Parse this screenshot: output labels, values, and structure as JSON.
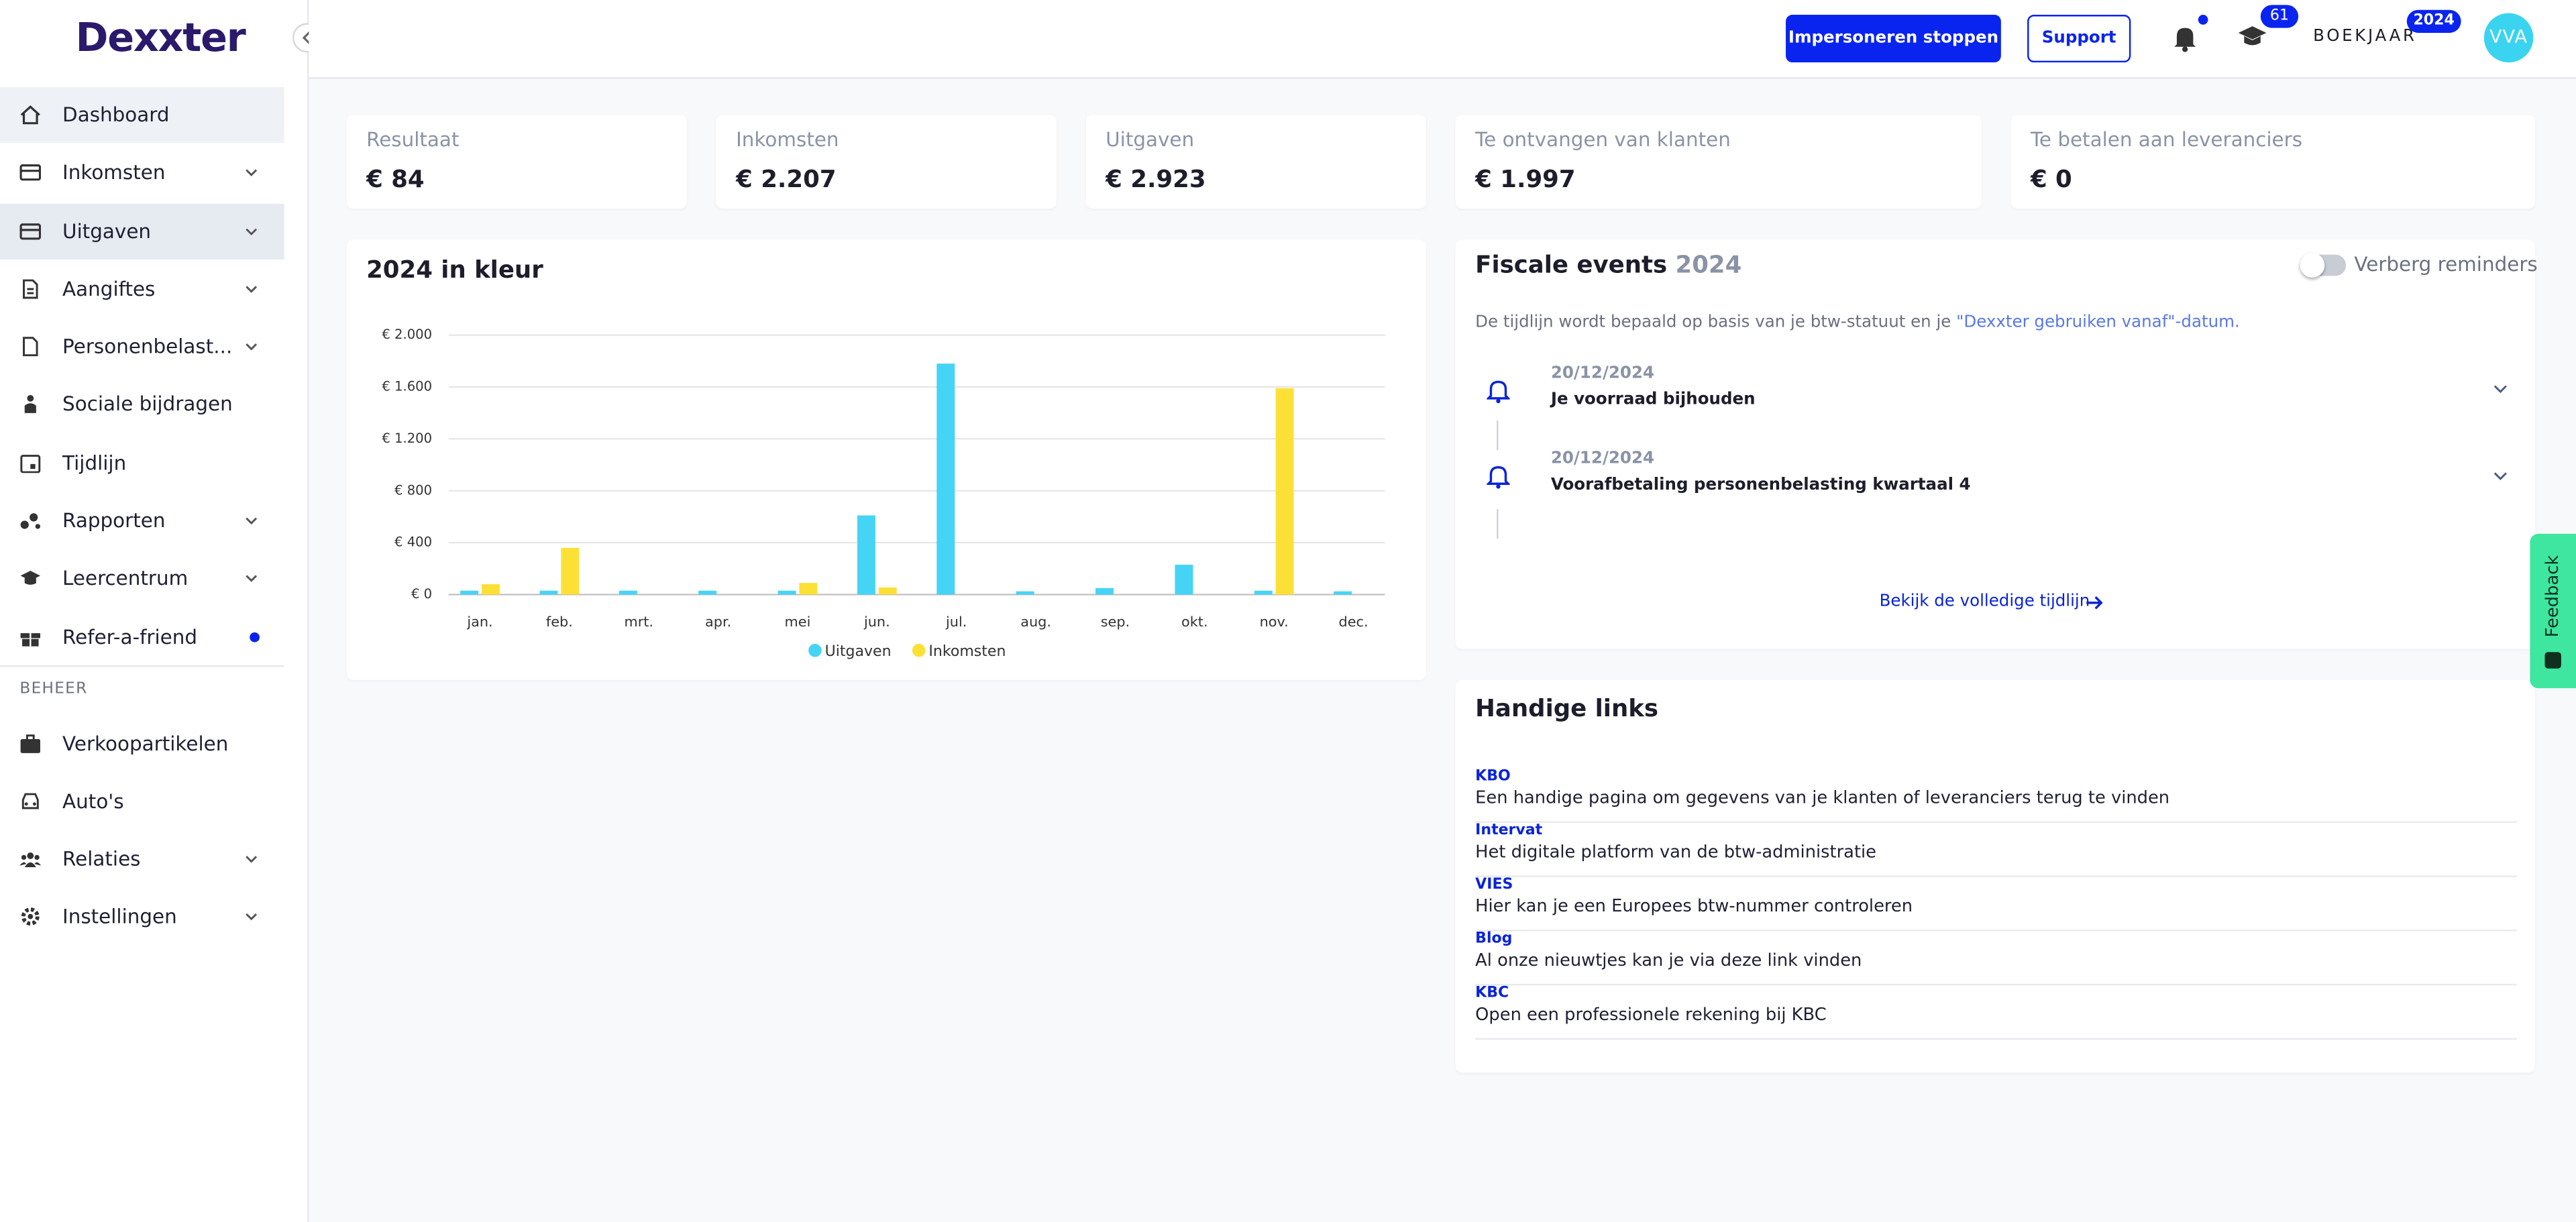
{
  "header": {
    "logo": "Dexxter",
    "stop_button": "Impersoneren stoppen",
    "support_button": "Support",
    "courses_badge": "61",
    "fiscal_year_label": "BOEKJAAR",
    "fiscal_year_badge": "2024",
    "avatar": "VVA"
  },
  "sidebar": {
    "items": [
      "Dashboard",
      "Inkomsten",
      "Uitgaven",
      "Aangiftes",
      "Personenbelast...",
      "Sociale bijdragen",
      "Tijdlijn",
      "Rapporten",
      "Leercentrum",
      "Refer-a-friend"
    ],
    "section": "BEHEER",
    "manage_items": [
      "Verkoopartikelen",
      "Auto's",
      "Relaties",
      "Instellingen"
    ]
  },
  "kpis": [
    {
      "label": "Resultaat",
      "value": "€ 84"
    },
    {
      "label": "Inkomsten",
      "value": "€ 2.207"
    },
    {
      "label": "Uitgaven",
      "value": "€ 2.923"
    },
    {
      "label": "Te ontvangen van klanten",
      "value": "€ 1.997"
    },
    {
      "label": "Te betalen aan leveranciers",
      "value": "€ 0"
    }
  ],
  "chart_data": {
    "type": "bar",
    "title": "2024 in kleur",
    "categories": [
      "jan.",
      "feb.",
      "mrt.",
      "apr.",
      "mei",
      "jun.",
      "jul.",
      "aug.",
      "sep.",
      "okt.",
      "nov.",
      "dec."
    ],
    "series": [
      {
        "name": "Uitgaven",
        "color": "#45d4f5",
        "values": [
          30,
          30,
          30,
          30,
          30,
          610,
          1780,
          25,
          50,
          230,
          30,
          25
        ]
      },
      {
        "name": "Inkomsten",
        "color": "#fde036",
        "values": [
          80,
          360,
          0,
          0,
          90,
          55,
          0,
          0,
          0,
          0,
          1590,
          0
        ]
      }
    ],
    "ylim": [
      0,
      2000
    ],
    "yticks": [
      {
        "value": 0,
        "label": "€ 0"
      },
      {
        "value": 400,
        "label": "€ 400"
      },
      {
        "value": 800,
        "label": "€ 800"
      },
      {
        "value": 1200,
        "label": "€ 1.200"
      },
      {
        "value": 1600,
        "label": "€ 1.600"
      },
      {
        "value": 2000,
        "label": "€ 2.000"
      }
    ],
    "grid": true,
    "legend": "bottom"
  },
  "fiscal": {
    "title": "Fiscale events",
    "year": "2024",
    "toggle": "Verberg reminders",
    "description": "De tijdlijn wordt bepaald op basis van je btw-statuut en je",
    "description_link": "\"Dexxter gebruiken vanaf\"-datum.",
    "events": [
      {
        "date": "20/12/2024",
        "title": "Je voorraad bijhouden"
      },
      {
        "date": "20/12/2024",
        "title": "Voorafbetaling personenbelasting kwartaal 4"
      }
    ],
    "more": "Bekijk de volledige tijdlijn"
  },
  "links": {
    "title": "Handige links",
    "items": [
      {
        "name": "KBO",
        "description": "Een handige pagina om gegevens van je klanten of leveranciers terug te vinden"
      },
      {
        "name": "Intervat",
        "description": "Het digitale platform van de btw-administratie"
      },
      {
        "name": "VIES",
        "description": "Hier kan je een Europees btw-nummer controleren"
      },
      {
        "name": "Blog",
        "description": "Al onze nieuwtjes kan je via deze link vinden"
      },
      {
        "name": "KBC",
        "description": "Open een professionele rekening bij KBC"
      }
    ]
  },
  "feedback": "Feedback"
}
